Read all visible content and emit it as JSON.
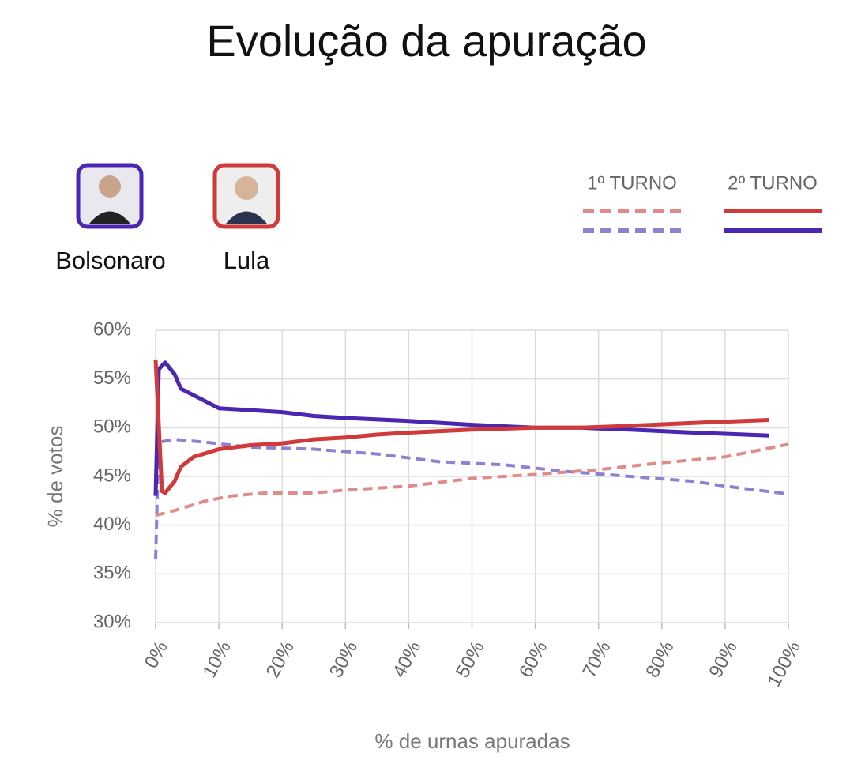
{
  "chart_data": {
    "type": "line",
    "title": "Evolução da apuração",
    "x_label": "% de urnas apuradas",
    "y_label": "% de votos",
    "turns": [
      "1º TURNO",
      "2º TURNO"
    ],
    "series": [
      {
        "name": "Bolsonaro",
        "color": "#4a27b0",
        "rounds": [
          {
            "color": "#8f80d2",
            "dashed": true,
            "x": [
              0,
              0.5,
              3,
              8,
              15,
              25,
              35,
              45,
              55,
              65,
              75,
              85,
              90,
              100
            ],
            "values": [
              36.5,
              48.5,
              48.8,
              48.5,
              48,
              47.8,
              47.3,
              46.5,
              46.2,
              45.5,
              45,
              44.5,
              44,
              43.2
            ]
          },
          {
            "color": "#4a27b0",
            "dashed": false,
            "x": [
              0,
              0.5,
              1.5,
              3,
              4,
              7,
              10,
              15,
              20,
              25,
              30,
              40,
              50,
              60,
              67,
              75,
              85,
              97
            ],
            "values": [
              43,
              56,
              56.7,
              55.5,
              54,
              53,
              52,
              51.8,
              51.6,
              51.2,
              51,
              50.7,
              50.3,
              50,
              50,
              49.8,
              49.5,
              49.2
            ]
          }
        ]
      },
      {
        "name": "Lula",
        "color": "#d03a3a",
        "rounds": [
          {
            "color": "#e08a8a",
            "dashed": true,
            "x": [
              0,
              3,
              8,
              12,
              17,
              25,
              30,
              40,
              50,
              60,
              70,
              80,
              90,
              100
            ],
            "values": [
              41,
              41.5,
              42.5,
              43,
              43.3,
              43.3,
              43.6,
              44,
              44.8,
              45.2,
              45.7,
              46.4,
              47,
              48.3
            ]
          },
          {
            "color": "#d03a3a",
            "dashed": false,
            "x": [
              0,
              1,
              1.5,
              3,
              4,
              6,
              10,
              15,
              20,
              25,
              30,
              35,
              40,
              50,
              60,
              67,
              75,
              85,
              97
            ],
            "values": [
              57,
              43.5,
              43.3,
              44.5,
              46,
              47,
              47.8,
              48.2,
              48.4,
              48.8,
              49,
              49.3,
              49.5,
              49.8,
              50,
              50,
              50.2,
              50.5,
              50.8
            ]
          }
        ]
      }
    ],
    "xlim": [
      0,
      100
    ],
    "xticks": [
      {
        "value": 0,
        "label": "0%"
      },
      {
        "value": 10,
        "label": "10%"
      },
      {
        "value": 20,
        "label": "20%"
      },
      {
        "value": 30,
        "label": "30%"
      },
      {
        "value": 40,
        "label": "40%"
      },
      {
        "value": 50,
        "label": "50%"
      },
      {
        "value": 60,
        "label": "60%"
      },
      {
        "value": 70,
        "label": "70%"
      },
      {
        "value": 80,
        "label": "80%"
      },
      {
        "value": 90,
        "label": "90%"
      },
      {
        "value": 100,
        "label": "100%"
      }
    ],
    "ylim": [
      30,
      60
    ],
    "yticks": [
      {
        "value": 30,
        "label": "30%"
      },
      {
        "value": 35,
        "label": "35%"
      },
      {
        "value": 40,
        "label": "40%"
      },
      {
        "value": 45,
        "label": "45%"
      },
      {
        "value": 50,
        "label": "50%"
      },
      {
        "value": 55,
        "label": "55%"
      },
      {
        "value": 60,
        "label": "60%"
      }
    ],
    "grid": true
  }
}
